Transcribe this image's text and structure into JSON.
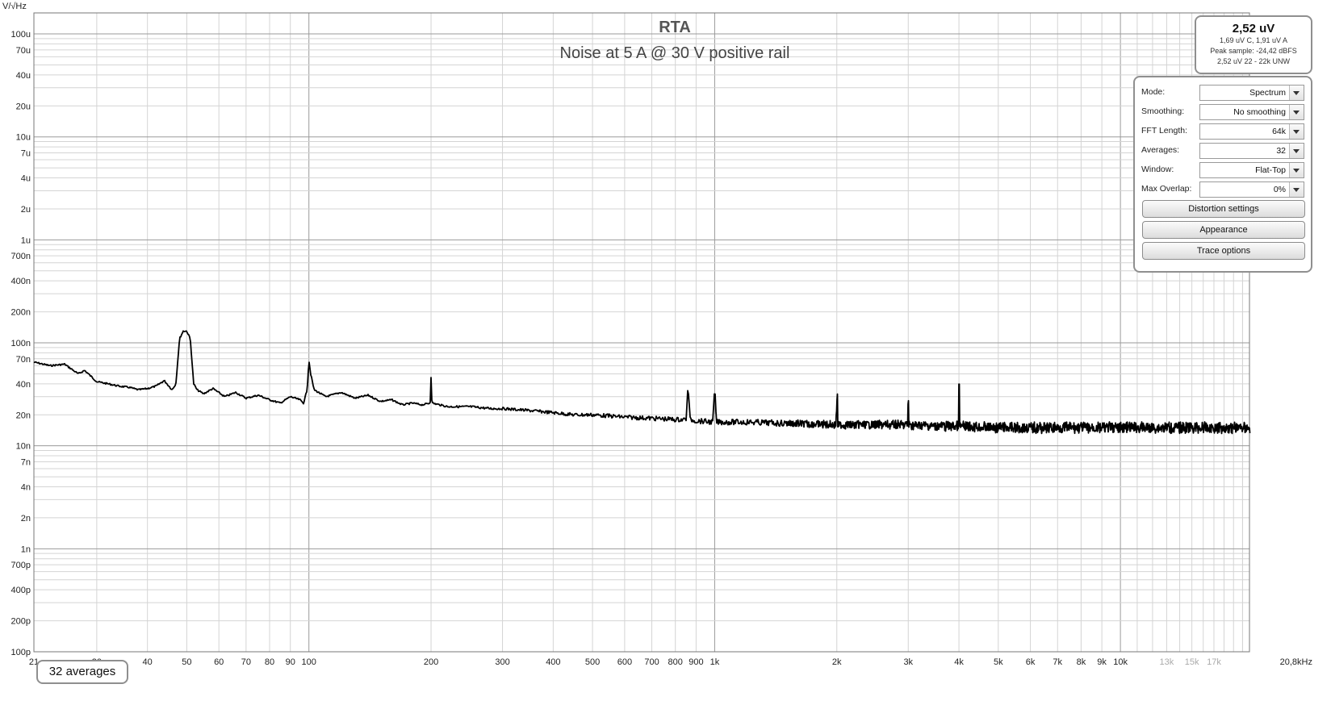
{
  "chart_data": {
    "type": "line",
    "title": "RTA",
    "subtitle": "Noise at 5 A @ 30 V positive rail",
    "ylabel": "V/√Hz",
    "xunit_label": "20,8kHz",
    "xscale": "log",
    "yscale": "log",
    "xlim": [
      21,
      20800
    ],
    "ylim": [
      1e-10,
      0.00016
    ],
    "grid": true,
    "y_ticks": [
      {
        "v": 0.0001,
        "label": "100u"
      },
      {
        "v": 7e-05,
        "label": "70u"
      },
      {
        "v": 4e-05,
        "label": "40u"
      },
      {
        "v": 2e-05,
        "label": "20u"
      },
      {
        "v": 1e-05,
        "label": "10u"
      },
      {
        "v": 7e-06,
        "label": "7u"
      },
      {
        "v": 4e-06,
        "label": "4u"
      },
      {
        "v": 2e-06,
        "label": "2u"
      },
      {
        "v": 1e-06,
        "label": "1u"
      },
      {
        "v": 7e-07,
        "label": "700n"
      },
      {
        "v": 4e-07,
        "label": "400n"
      },
      {
        "v": 2e-07,
        "label": "200n"
      },
      {
        "v": 1e-07,
        "label": "100n"
      },
      {
        "v": 7e-08,
        "label": "70n"
      },
      {
        "v": 4e-08,
        "label": "40n"
      },
      {
        "v": 2e-08,
        "label": "20n"
      },
      {
        "v": 1e-08,
        "label": "10n"
      },
      {
        "v": 7e-09,
        "label": "7n"
      },
      {
        "v": 4e-09,
        "label": "4n"
      },
      {
        "v": 2e-09,
        "label": "2n"
      },
      {
        "v": 1e-09,
        "label": "1n"
      },
      {
        "v": 7e-10,
        "label": "700p"
      },
      {
        "v": 4e-10,
        "label": "400p"
      },
      {
        "v": 2e-10,
        "label": "200p"
      },
      {
        "v": 1e-10,
        "label": "100p"
      }
    ],
    "x_ticks": [
      {
        "v": 21,
        "label": "21"
      },
      {
        "v": 30,
        "label": "30"
      },
      {
        "v": 40,
        "label": "40"
      },
      {
        "v": 50,
        "label": "50"
      },
      {
        "v": 60,
        "label": "60"
      },
      {
        "v": 70,
        "label": "70"
      },
      {
        "v": 80,
        "label": "80"
      },
      {
        "v": 90,
        "label": "90"
      },
      {
        "v": 100,
        "label": "100"
      },
      {
        "v": 200,
        "label": "200"
      },
      {
        "v": 300,
        "label": "300"
      },
      {
        "v": 400,
        "label": "400"
      },
      {
        "v": 500,
        "label": "500"
      },
      {
        "v": 600,
        "label": "600"
      },
      {
        "v": 700,
        "label": "700"
      },
      {
        "v": 800,
        "label": "800"
      },
      {
        "v": 900,
        "label": "900"
      },
      {
        "v": 1000,
        "label": "1k"
      },
      {
        "v": 2000,
        "label": "2k"
      },
      {
        "v": 3000,
        "label": "3k"
      },
      {
        "v": 4000,
        "label": "4k"
      },
      {
        "v": 5000,
        "label": "5k"
      },
      {
        "v": 6000,
        "label": "6k"
      },
      {
        "v": 7000,
        "label": "7k"
      },
      {
        "v": 8000,
        "label": "8k"
      },
      {
        "v": 9000,
        "label": "9k"
      },
      {
        "v": 10000,
        "label": "10k"
      },
      {
        "v": 13000,
        "label": "13k",
        "faded": true
      },
      {
        "v": 15000,
        "label": "15k",
        "faded": true
      },
      {
        "v": 17000,
        "label": "17k",
        "faded": true
      }
    ],
    "series": [
      {
        "color": "#000000",
        "x": [
          21,
          23,
          25,
          27,
          28,
          30,
          32,
          34,
          36,
          38,
          40,
          42,
          44,
          46,
          47,
          48,
          49,
          50,
          51,
          52,
          53,
          55,
          58,
          62,
          66,
          70,
          75,
          80,
          85,
          90,
          95,
          97,
          99,
          100,
          101,
          103,
          110,
          120,
          130,
          140,
          150,
          160,
          170,
          180,
          190,
          199,
          200,
          201,
          220,
          250,
          280,
          300,
          350,
          400,
          450,
          500,
          550,
          600,
          700,
          800,
          850,
          860,
          870,
          900,
          990,
          1000,
          1010,
          1200,
          1500,
          1990,
          2000,
          2010,
          2500,
          2990,
          3000,
          3010,
          3500,
          3990,
          4000,
          4010,
          5000,
          6000,
          7000,
          8000,
          9000,
          10000,
          12000,
          15000,
          18000,
          20800
        ],
        "y": [
          6.5e-08,
          6e-08,
          6.2e-08,
          5e-08,
          5.4e-08,
          4.2e-08,
          4e-08,
          3.8e-08,
          3.7e-08,
          3.5e-08,
          3.6e-08,
          3.8e-08,
          4.3e-08,
          3.5e-08,
          4e-08,
          1.1e-07,
          1.3e-07,
          1.3e-07,
          1.1e-07,
          4e-08,
          3.5e-08,
          3.2e-08,
          3.6e-08,
          3e-08,
          3.3e-08,
          2.9e-08,
          3.1e-08,
          2.8e-08,
          2.6e-08,
          3e-08,
          2.8e-08,
          2.6e-08,
          3.5e-08,
          6.8e-08,
          5e-08,
          3.5e-08,
          3e-08,
          3.3e-08,
          2.9e-08,
          3.1e-08,
          2.7e-08,
          2.8e-08,
          2.5e-08,
          2.6e-08,
          2.5e-08,
          2.6e-08,
          4.8e-08,
          2.6e-08,
          2.4e-08,
          2.4e-08,
          2.3e-08,
          2.3e-08,
          2.2e-08,
          2.1e-08,
          2e-08,
          2e-08,
          1.95e-08,
          1.9e-08,
          1.85e-08,
          1.8e-08,
          1.8e-08,
          3.8e-08,
          1.8e-08,
          1.75e-08,
          1.7e-08,
          3.7e-08,
          1.7e-08,
          1.7e-08,
          1.65e-08,
          1.6e-08,
          3.5e-08,
          1.6e-08,
          1.6e-08,
          1.6e-08,
          3.4e-08,
          1.6e-08,
          1.55e-08,
          1.55e-08,
          4.2e-08,
          1.55e-08,
          1.5e-08,
          1.5e-08,
          1.5e-08,
          1.5e-08,
          1.5e-08,
          1.5e-08,
          1.5e-08,
          1.5e-08,
          1.5e-08,
          1.5e-08
        ]
      }
    ]
  },
  "readout": {
    "main": "2,52 uV",
    "line1": "1,69 uV C, 1,91 uV A",
    "line2": "Peak sample: -24,42 dBFS",
    "line3": "2,52 uV 22 - 22k UNW"
  },
  "controls": {
    "rows": [
      {
        "label": "Mode:",
        "value": "Spectrum"
      },
      {
        "label": "Smoothing:",
        "value": "No  smoothing"
      },
      {
        "label": "FFT Length:",
        "value": "64k"
      },
      {
        "label": "Averages:",
        "value": "32"
      },
      {
        "label": "Window:",
        "value": "Flat-Top"
      },
      {
        "label": "Max Overlap:",
        "value": "0%"
      }
    ],
    "distortion_button": "Distortion settings",
    "appearance_button": "Appearance",
    "trace_button": "Trace options"
  },
  "averages_badge": "32 averages"
}
